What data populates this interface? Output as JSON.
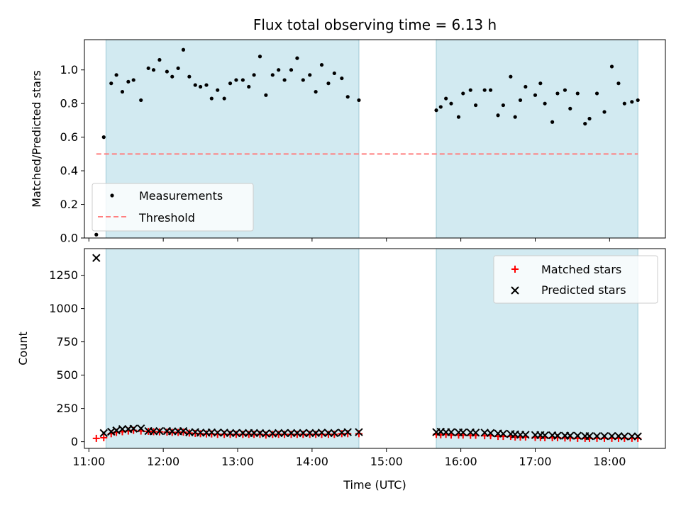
{
  "chart_data": [
    {
      "type": "scatter",
      "title": "Flux total observing time = 6.13 h",
      "xlabel": "",
      "ylabel": "Matched/Predicted stars",
      "xlim": [
        10.94,
        18.75
      ],
      "ylim": [
        0,
        1.18
      ],
      "y_ticks": [
        "0.0",
        "0.2",
        "0.4",
        "0.6",
        "0.8",
        "1.0"
      ],
      "y_tick_values": [
        0,
        0.2,
        0.4,
        0.6,
        0.8,
        1.0
      ],
      "shaded_intervals": [
        [
          11.23,
          14.63
        ],
        [
          15.67,
          18.38
        ]
      ],
      "shade_color": "#add8e6",
      "legend_position": "lower-left",
      "series": [
        {
          "name": "Measurements",
          "kind": "scatter",
          "color": "#000000",
          "x": [
            11.1,
            11.2,
            11.3,
            11.37,
            11.45,
            11.53,
            11.6,
            11.7,
            11.8,
            11.87,
            11.95,
            12.05,
            12.12,
            12.2,
            12.27,
            12.35,
            12.43,
            12.5,
            12.58,
            12.65,
            12.73,
            12.82,
            12.9,
            12.98,
            13.07,
            13.15,
            13.22,
            13.3,
            13.38,
            13.47,
            13.55,
            13.63,
            13.72,
            13.8,
            13.88,
            13.97,
            14.05,
            14.13,
            14.22,
            14.3,
            14.4,
            14.48,
            14.63,
            15.67,
            15.73,
            15.8,
            15.87,
            15.97,
            16.03,
            16.13,
            16.2,
            16.32,
            16.4,
            16.5,
            16.57,
            16.67,
            16.73,
            16.8,
            16.87,
            17.0,
            17.07,
            17.13,
            17.23,
            17.3,
            17.4,
            17.47,
            17.57,
            17.67,
            17.73,
            17.83,
            17.93,
            18.03,
            18.12,
            18.2,
            18.3,
            18.38
          ],
          "y": [
            0.02,
            0.6,
            0.92,
            0.97,
            0.87,
            0.93,
            0.94,
            0.82,
            1.01,
            1.0,
            1.06,
            0.99,
            0.96,
            1.01,
            1.12,
            0.96,
            0.91,
            0.9,
            0.91,
            0.83,
            0.88,
            0.83,
            0.92,
            0.94,
            0.94,
            0.9,
            0.97,
            1.08,
            0.85,
            0.97,
            1.0,
            0.94,
            1.0,
            1.07,
            0.94,
            0.97,
            0.87,
            1.03,
            0.92,
            0.98,
            0.95,
            0.84,
            0.82,
            0.76,
            0.78,
            0.83,
            0.8,
            0.72,
            0.86,
            0.88,
            0.79,
            0.88,
            0.88,
            0.73,
            0.79,
            0.96,
            0.72,
            0.82,
            0.9,
            0.85,
            0.92,
            0.8,
            0.69,
            0.86,
            0.88,
            0.77,
            0.86,
            0.68,
            0.71,
            0.86,
            0.75,
            1.02,
            0.92,
            0.8,
            0.81,
            0.82
          ]
        },
        {
          "name": "Threshold",
          "kind": "line",
          "style": "dashed",
          "color": "#ff7f7f",
          "x": [
            11.1,
            18.38
          ],
          "y": [
            0.5,
            0.5
          ]
        }
      ]
    },
    {
      "type": "scatter",
      "title": "",
      "xlabel": "Time (UTC)",
      "ylabel": "Count",
      "xlim": [
        10.94,
        18.75
      ],
      "ylim": [
        -50,
        1450
      ],
      "x_ticks": [
        "11:00",
        "12:00",
        "13:00",
        "14:00",
        "15:00",
        "16:00",
        "17:00",
        "18:00"
      ],
      "x_tick_values": [
        11,
        12,
        13,
        14,
        15,
        16,
        17,
        18
      ],
      "y_ticks": [
        "0",
        "250",
        "500",
        "750",
        "1000",
        "1250"
      ],
      "y_tick_values": [
        0,
        250,
        500,
        750,
        1000,
        1250
      ],
      "shaded_intervals": [
        [
          11.23,
          14.63
        ],
        [
          15.67,
          18.38
        ]
      ],
      "shade_color": "#add8e6",
      "legend_position": "top-right",
      "series": [
        {
          "name": "Matched stars",
          "kind": "scatter",
          "marker": "plus",
          "color": "#ff0000",
          "x": [
            11.1,
            11.2,
            11.3,
            11.37,
            11.45,
            11.53,
            11.6,
            11.7,
            11.8,
            11.87,
            11.95,
            12.05,
            12.12,
            12.2,
            12.27,
            12.35,
            12.43,
            12.5,
            12.58,
            12.65,
            12.73,
            12.82,
            12.9,
            12.98,
            13.07,
            13.15,
            13.22,
            13.3,
            13.38,
            13.47,
            13.55,
            13.63,
            13.72,
            13.8,
            13.88,
            13.97,
            14.05,
            14.13,
            14.22,
            14.3,
            14.4,
            14.48,
            14.63,
            15.67,
            15.73,
            15.8,
            15.87,
            15.97,
            16.03,
            16.13,
            16.2,
            16.32,
            16.4,
            16.5,
            16.57,
            16.67,
            16.73,
            16.8,
            16.87,
            17.0,
            17.07,
            17.13,
            17.23,
            17.3,
            17.4,
            17.47,
            17.57,
            17.67,
            17.73,
            17.83,
            17.93,
            18.03,
            18.12,
            18.2,
            18.3,
            18.38
          ],
          "y": [
            25,
            30,
            60,
            70,
            75,
            80,
            85,
            80,
            78,
            75,
            74,
            72,
            70,
            70,
            72,
            65,
            62,
            60,
            58,
            58,
            55,
            55,
            55,
            55,
            55,
            55,
            55,
            55,
            50,
            55,
            55,
            55,
            55,
            55,
            55,
            55,
            55,
            55,
            55,
            55,
            60,
            60,
            60,
            55,
            52,
            55,
            50,
            50,
            50,
            48,
            48,
            45,
            45,
            40,
            40,
            40,
            35,
            35,
            35,
            32,
            32,
            30,
            30,
            30,
            28,
            28,
            25,
            25,
            25,
            25,
            25,
            25,
            25,
            25,
            25,
            25
          ]
        },
        {
          "name": "Predicted stars",
          "kind": "scatter",
          "marker": "x",
          "color": "#000000",
          "x": [
            11.1,
            11.2,
            11.3,
            11.37,
            11.45,
            11.53,
            11.6,
            11.7,
            11.8,
            11.87,
            11.95,
            12.05,
            12.12,
            12.2,
            12.27,
            12.35,
            12.43,
            12.5,
            12.58,
            12.65,
            12.73,
            12.82,
            12.9,
            12.98,
            13.07,
            13.15,
            13.22,
            13.3,
            13.38,
            13.47,
            13.55,
            13.63,
            13.72,
            13.8,
            13.88,
            13.97,
            14.05,
            14.13,
            14.22,
            14.3,
            14.4,
            14.48,
            14.63,
            15.67,
            15.73,
            15.8,
            15.87,
            15.97,
            16.03,
            16.13,
            16.2,
            16.32,
            16.4,
            16.5,
            16.57,
            16.67,
            16.73,
            16.8,
            16.87,
            17.0,
            17.07,
            17.13,
            17.23,
            17.3,
            17.4,
            17.47,
            17.57,
            17.67,
            17.73,
            17.83,
            17.93,
            18.03,
            18.12,
            18.2,
            18.3,
            18.38
          ],
          "y": [
            1380,
            65,
            75,
            85,
            95,
            95,
            98,
            100,
            80,
            78,
            80,
            80,
            78,
            78,
            80,
            70,
            72,
            68,
            68,
            70,
            68,
            68,
            65,
            65,
            65,
            65,
            65,
            65,
            62,
            62,
            65,
            65,
            65,
            65,
            65,
            65,
            65,
            68,
            65,
            65,
            68,
            72,
            72,
            72,
            75,
            72,
            72,
            70,
            70,
            70,
            68,
            68,
            65,
            62,
            60,
            58,
            55,
            52,
            52,
            50,
            50,
            48,
            48,
            45,
            45,
            45,
            45,
            42,
            42,
            42,
            42,
            42,
            42,
            40,
            40,
            40
          ]
        }
      ]
    }
  ]
}
